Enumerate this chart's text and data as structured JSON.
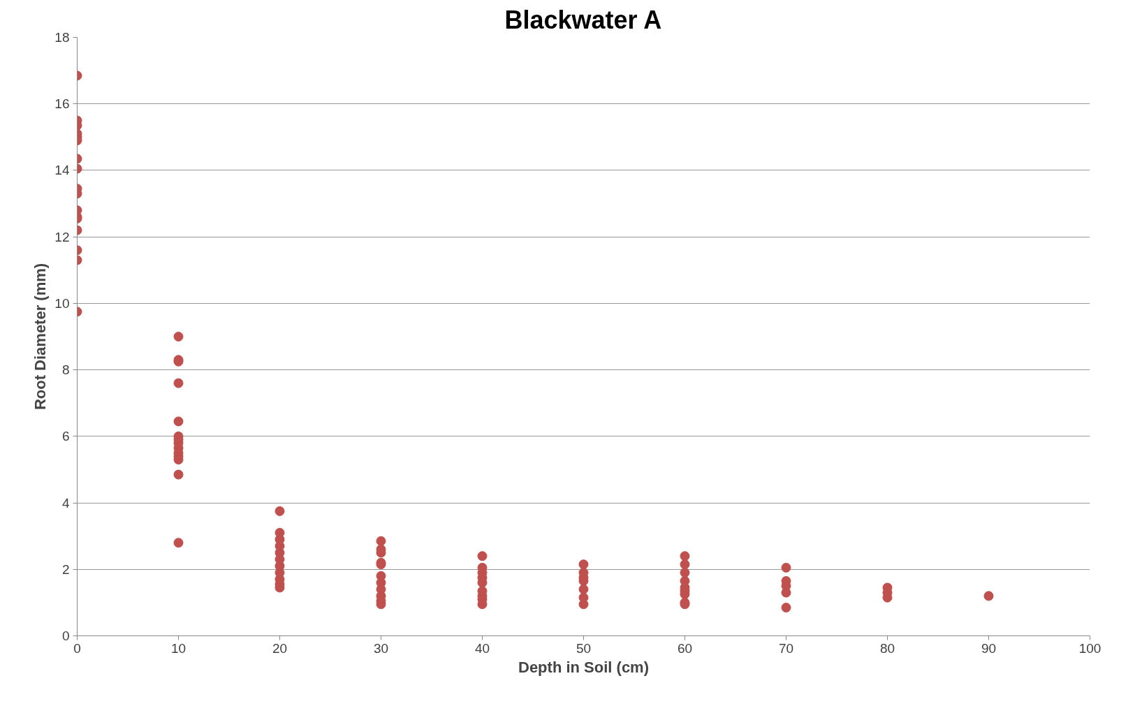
{
  "chart_data": {
    "type": "scatter",
    "title": "Blackwater A",
    "xlabel": "Depth in Soil (cm)",
    "ylabel": "Root Diameter (mm)",
    "x": [
      0,
      0,
      0,
      0,
      0,
      0,
      0,
      0,
      0,
      0,
      0,
      0,
      0,
      0,
      0,
      0,
      0,
      10,
      10,
      10,
      10,
      10,
      10,
      10,
      10,
      10,
      10,
      10,
      10,
      10,
      10,
      20,
      20,
      20,
      20,
      20,
      20,
      20,
      20,
      20,
      20,
      20,
      30,
      30,
      30,
      30,
      30,
      30,
      30,
      30,
      30,
      30,
      30,
      40,
      40,
      40,
      40,
      40,
      40,
      40,
      40,
      40,
      50,
      50,
      50,
      50,
      50,
      50,
      50,
      60,
      60,
      60,
      60,
      60,
      60,
      60,
      60,
      60,
      70,
      70,
      70,
      70,
      70,
      80,
      80,
      80,
      90
    ],
    "series": [
      {
        "color": "#c0504d",
        "values": [
          16.85,
          15.5,
          15.35,
          15.1,
          15.0,
          14.9,
          14.35,
          14.05,
          13.45,
          13.3,
          12.8,
          12.6,
          12.55,
          12.2,
          11.6,
          11.3,
          9.75,
          9.0,
          8.3,
          8.25,
          7.6,
          6.45,
          6.0,
          5.9,
          5.8,
          5.65,
          5.5,
          5.4,
          5.3,
          4.85,
          2.8,
          3.75,
          3.1,
          2.9,
          2.7,
          2.5,
          2.3,
          2.1,
          1.9,
          1.7,
          1.55,
          1.45,
          2.85,
          2.6,
          2.5,
          2.2,
          2.15,
          1.8,
          1.6,
          1.4,
          1.2,
          1.05,
          0.95,
          2.4,
          2.05,
          1.9,
          1.75,
          1.6,
          1.35,
          1.2,
          1.1,
          0.95,
          2.15,
          1.9,
          1.75,
          1.65,
          1.4,
          1.15,
          0.95,
          2.4,
          2.15,
          1.9,
          1.65,
          1.45,
          1.35,
          1.25,
          1.0,
          0.95,
          2.05,
          1.65,
          1.5,
          1.3,
          0.85,
          1.45,
          1.3,
          1.15,
          1.2
        ]
      }
    ],
    "xlim": [
      0,
      100
    ],
    "xticks": [
      0,
      10,
      20,
      30,
      40,
      50,
      60,
      70,
      80,
      90,
      100
    ],
    "ylim": [
      0,
      18
    ],
    "yticks": [
      0,
      2,
      4,
      6,
      8,
      10,
      12,
      14,
      16,
      18
    ],
    "grid": "y",
    "marker": "circle"
  }
}
